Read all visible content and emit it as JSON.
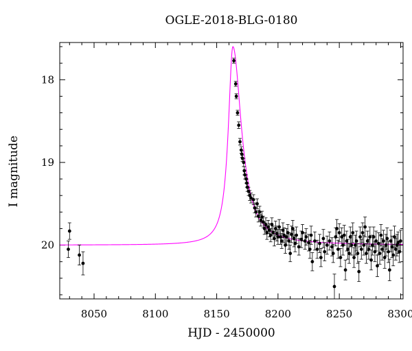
{
  "chart_data": {
    "type": "scatter",
    "title": "OGLE-2018-BLG-0180",
    "xlabel": "HJD - 2450000",
    "ylabel": "I magnitude",
    "xlim": [
      8022,
      8302
    ],
    "ylim": [
      20.65,
      17.55
    ],
    "y_inverted": true,
    "x_ticks": [
      8050,
      8100,
      8150,
      8200,
      8250,
      8300
    ],
    "y_ticks": [
      18,
      19,
      20
    ],
    "model": {
      "color": "#ff00ff",
      "baseline": 20.0,
      "t0": 8163.2,
      "peak_mag": 17.6,
      "rise_tau": 4.5,
      "fall_tau": 8.5
    },
    "series": [
      {
        "marker": "filled-circle",
        "color": "#000000",
        "points": [
          [
            8029,
            20.05,
            0.1
          ],
          [
            8030,
            19.83,
            0.1
          ],
          [
            8038,
            20.12,
            0.12
          ],
          [
            8041,
            20.22,
            0.14
          ],
          [
            8164,
            17.77,
            0.03
          ],
          [
            8165.5,
            18.05,
            0.03
          ],
          [
            8166,
            18.2,
            0.03
          ],
          [
            8167,
            18.4,
            0.03
          ],
          [
            8168,
            18.55,
            0.04
          ],
          [
            8169,
            18.75,
            0.04
          ],
          [
            8170,
            18.85,
            0.04
          ],
          [
            8170.5,
            18.9,
            0.04
          ],
          [
            8171,
            18.95,
            0.04
          ],
          [
            8172,
            19.0,
            0.05
          ],
          [
            8172.5,
            19.1,
            0.05
          ],
          [
            8173,
            19.15,
            0.05
          ],
          [
            8174,
            19.2,
            0.05
          ],
          [
            8174.5,
            19.25,
            0.05
          ],
          [
            8175,
            19.3,
            0.05
          ],
          [
            8176,
            19.35,
            0.05
          ],
          [
            8177,
            19.4,
            0.06
          ],
          [
            8178,
            19.43,
            0.06
          ],
          [
            8180,
            19.45,
            0.06
          ],
          [
            8181,
            19.55,
            0.06
          ],
          [
            8182,
            19.6,
            0.06
          ],
          [
            8183,
            19.5,
            0.06
          ],
          [
            8184,
            19.65,
            0.07
          ],
          [
            8185,
            19.6,
            0.07
          ],
          [
            8186,
            19.7,
            0.07
          ],
          [
            8187,
            19.66,
            0.07
          ],
          [
            8188,
            19.72,
            0.07
          ],
          [
            8189,
            19.8,
            0.07
          ],
          [
            8190,
            19.75,
            0.08
          ],
          [
            8191,
            19.85,
            0.08
          ],
          [
            8192,
            19.78,
            0.08
          ],
          [
            8193,
            19.82,
            0.08
          ],
          [
            8194,
            19.88,
            0.08
          ],
          [
            8195,
            19.75,
            0.08
          ],
          [
            8196,
            19.85,
            0.08
          ],
          [
            8197,
            19.92,
            0.09
          ],
          [
            8198,
            19.8,
            0.09
          ],
          [
            8199,
            19.86,
            0.09
          ],
          [
            8200,
            19.9,
            0.09
          ],
          [
            8201,
            19.78,
            0.09
          ],
          [
            8202,
            19.9,
            0.09
          ],
          [
            8203,
            19.95,
            0.09
          ],
          [
            8204,
            19.82,
            0.09
          ],
          [
            8205,
            19.88,
            0.09
          ],
          [
            8206,
            20.0,
            0.1
          ],
          [
            8207,
            19.9,
            0.1
          ],
          [
            8208,
            19.85,
            0.1
          ],
          [
            8209,
            19.95,
            0.1
          ],
          [
            8210,
            20.1,
            0.1
          ],
          [
            8211,
            19.87,
            0.1
          ],
          [
            8212,
            19.8,
            0.1
          ],
          [
            8213,
            19.92,
            0.1
          ],
          [
            8214,
            19.98,
            0.1
          ],
          [
            8215,
            19.88,
            0.1
          ],
          [
            8217,
            20.02,
            0.1
          ],
          [
            8219,
            19.93,
            0.1
          ],
          [
            8220,
            19.85,
            0.1
          ],
          [
            8222,
            19.95,
            0.1
          ],
          [
            8223,
            19.9,
            0.1
          ],
          [
            8225,
            19.97,
            0.1
          ],
          [
            8226,
            20.05,
            0.11
          ],
          [
            8227,
            19.88,
            0.11
          ],
          [
            8228,
            20.2,
            0.11
          ],
          [
            8230,
            19.95,
            0.11
          ],
          [
            8232,
            20.05,
            0.11
          ],
          [
            8234,
            19.98,
            0.11
          ],
          [
            8235,
            20.15,
            0.11
          ],
          [
            8237,
            19.92,
            0.11
          ],
          [
            8238,
            20.08,
            0.11
          ],
          [
            8240,
            20.0,
            0.11
          ],
          [
            8242,
            19.95,
            0.11
          ],
          [
            8244,
            20.02,
            0.11
          ],
          [
            8245,
            20.1,
            0.11
          ],
          [
            8246,
            20.5,
            0.15
          ],
          [
            8247,
            19.9,
            0.11
          ],
          [
            8248,
            19.8,
            0.11
          ],
          [
            8249,
            20.05,
            0.11
          ],
          [
            8250,
            19.85,
            0.11
          ],
          [
            8251,
            20.15,
            0.11
          ],
          [
            8252,
            19.9,
            0.11
          ],
          [
            8253,
            20.0,
            0.12
          ],
          [
            8254,
            19.88,
            0.12
          ],
          [
            8255,
            20.3,
            0.12
          ],
          [
            8256,
            19.95,
            0.12
          ],
          [
            8257,
            20.05,
            0.12
          ],
          [
            8258,
            20.1,
            0.12
          ],
          [
            8259,
            19.9,
            0.12
          ],
          [
            8260,
            20.0,
            0.12
          ],
          [
            8261,
            19.85,
            0.12
          ],
          [
            8262,
            20.15,
            0.12
          ],
          [
            8263,
            20.0,
            0.12
          ],
          [
            8264,
            19.95,
            0.12
          ],
          [
            8265,
            20.1,
            0.12
          ],
          [
            8266,
            20.32,
            0.12
          ],
          [
            8267,
            19.9,
            0.12
          ],
          [
            8268,
            20.05,
            0.12
          ],
          [
            8269,
            19.85,
            0.12
          ],
          [
            8270,
            20.0,
            0.12
          ],
          [
            8271,
            19.78,
            0.12
          ],
          [
            8272,
            20.1,
            0.12
          ],
          [
            8273,
            19.95,
            0.12
          ],
          [
            8274,
            20.05,
            0.12
          ],
          [
            8275,
            19.9,
            0.12
          ],
          [
            8276,
            20.18,
            0.12
          ],
          [
            8277,
            20.0,
            0.12
          ],
          [
            8278,
            19.9,
            0.12
          ],
          [
            8279,
            20.08,
            0.12
          ],
          [
            8280,
            19.95,
            0.12
          ],
          [
            8281,
            20.25,
            0.13
          ],
          [
            8282,
            19.98,
            0.13
          ],
          [
            8283,
            20.1,
            0.13
          ],
          [
            8284,
            19.88,
            0.13
          ],
          [
            8285,
            20.05,
            0.13
          ],
          [
            8286,
            19.95,
            0.13
          ],
          [
            8287,
            20.15,
            0.13
          ],
          [
            8288,
            20.0,
            0.13
          ],
          [
            8289,
            19.92,
            0.13
          ],
          [
            8290,
            20.08,
            0.13
          ],
          [
            8291,
            20.3,
            0.13
          ],
          [
            8292,
            19.95,
            0.13
          ],
          [
            8293,
            20.02,
            0.13
          ],
          [
            8294,
            20.12,
            0.13
          ],
          [
            8295,
            19.9,
            0.13
          ],
          [
            8296,
            20.05,
            0.13
          ],
          [
            8297,
            20.0,
            0.13
          ],
          [
            8298,
            19.97,
            0.13
          ],
          [
            8299,
            20.08,
            0.13
          ],
          [
            8300,
            19.95,
            0.13
          ]
        ]
      }
    ]
  }
}
